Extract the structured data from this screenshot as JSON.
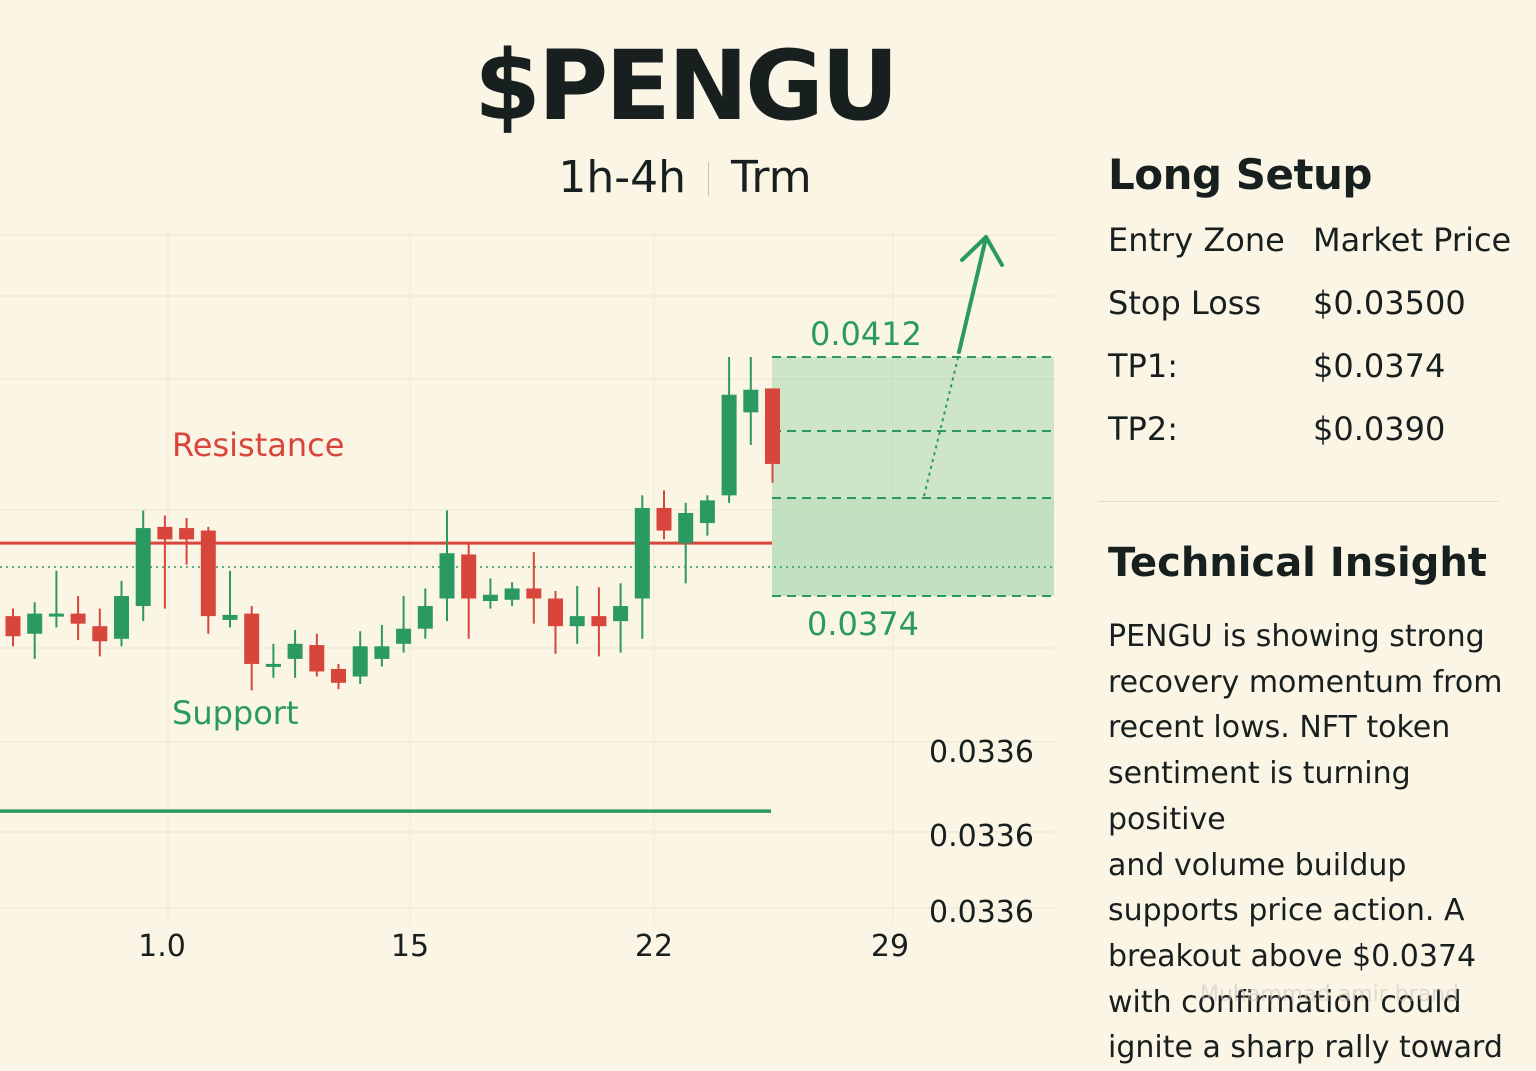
{
  "header": {
    "title": "$PENGU",
    "timeframe": "1h-4h",
    "term": "Trm"
  },
  "colors": {
    "background": "#fbf5e6",
    "bull": "#2a9a62",
    "bear": "#d8453a",
    "resistance": "#d8453a",
    "support": "#2a9a62",
    "zone": "#8fd0a0",
    "text": "#18201f"
  },
  "chart_data": {
    "type": "candlestick",
    "x_tick_labels": [
      "1.0",
      "15",
      "22",
      "29"
    ],
    "y_tick_labels": [
      "0.0336",
      "0.0336",
      "0.0336"
    ],
    "annotations": {
      "resistance_label": "Resistance",
      "support_label": "Support",
      "zone_top_label": "0.0412",
      "zone_bottom_label": "0.0374"
    },
    "levels": {
      "resistance": 0.03824,
      "support": 0.03398,
      "zone_top": 0.0412,
      "zone_bottom": 0.0374
    },
    "candles": [
      {
        "o": 0.03708,
        "h": 0.0372,
        "l": 0.0366,
        "c": 0.03676
      },
      {
        "o": 0.0368,
        "h": 0.0373,
        "l": 0.0364,
        "c": 0.03712
      },
      {
        "o": 0.03708,
        "h": 0.0378,
        "l": 0.0369,
        "c": 0.03712
      },
      {
        "o": 0.03712,
        "h": 0.0374,
        "l": 0.0367,
        "c": 0.03696
      },
      {
        "o": 0.03692,
        "h": 0.0372,
        "l": 0.03644,
        "c": 0.03668
      },
      {
        "o": 0.03672,
        "h": 0.03764,
        "l": 0.0366,
        "c": 0.0374
      },
      {
        "o": 0.03724,
        "h": 0.03876,
        "l": 0.037,
        "c": 0.03848
      },
      {
        "o": 0.0385,
        "h": 0.03868,
        "l": 0.0372,
        "c": 0.0383
      },
      {
        "o": 0.03848,
        "h": 0.03864,
        "l": 0.0379,
        "c": 0.0383
      },
      {
        "o": 0.03844,
        "h": 0.0385,
        "l": 0.0368,
        "c": 0.03708
      },
      {
        "o": 0.03702,
        "h": 0.0378,
        "l": 0.0369,
        "c": 0.0371
      },
      {
        "o": 0.03712,
        "h": 0.03724,
        "l": 0.0359,
        "c": 0.03632
      },
      {
        "o": 0.03632,
        "h": 0.03664,
        "l": 0.0361,
        "c": 0.03632
      },
      {
        "o": 0.0364,
        "h": 0.03686,
        "l": 0.0361,
        "c": 0.03664
      },
      {
        "o": 0.03662,
        "h": 0.0368,
        "l": 0.03612,
        "c": 0.0362
      },
      {
        "o": 0.03624,
        "h": 0.03632,
        "l": 0.03592,
        "c": 0.03602
      },
      {
        "o": 0.03612,
        "h": 0.03684,
        "l": 0.036,
        "c": 0.0366
      },
      {
        "o": 0.0364,
        "h": 0.03694,
        "l": 0.03628,
        "c": 0.0366
      },
      {
        "o": 0.03664,
        "h": 0.0374,
        "l": 0.0365,
        "c": 0.03688
      },
      {
        "o": 0.03688,
        "h": 0.03752,
        "l": 0.03672,
        "c": 0.03724
      },
      {
        "o": 0.03736,
        "h": 0.03876,
        "l": 0.037,
        "c": 0.03808
      },
      {
        "o": 0.03806,
        "h": 0.03826,
        "l": 0.03672,
        "c": 0.03736
      },
      {
        "o": 0.03732,
        "h": 0.03768,
        "l": 0.0372,
        "c": 0.03742
      },
      {
        "o": 0.03734,
        "h": 0.03762,
        "l": 0.03724,
        "c": 0.03752
      },
      {
        "o": 0.03752,
        "h": 0.0381,
        "l": 0.03696,
        "c": 0.03736
      },
      {
        "o": 0.03736,
        "h": 0.03748,
        "l": 0.03648,
        "c": 0.03692
      },
      {
        "o": 0.03692,
        "h": 0.03756,
        "l": 0.03664,
        "c": 0.03708
      },
      {
        "o": 0.03708,
        "h": 0.03754,
        "l": 0.03644,
        "c": 0.03692
      },
      {
        "o": 0.037,
        "h": 0.0376,
        "l": 0.0365,
        "c": 0.03724
      },
      {
        "o": 0.03736,
        "h": 0.039,
        "l": 0.03672,
        "c": 0.0388
      },
      {
        "o": 0.0388,
        "h": 0.03908,
        "l": 0.0383,
        "c": 0.03844
      },
      {
        "o": 0.03824,
        "h": 0.03888,
        "l": 0.0376,
        "c": 0.03872
      },
      {
        "o": 0.03856,
        "h": 0.039,
        "l": 0.03836,
        "c": 0.03892
      },
      {
        "o": 0.039,
        "h": 0.0412,
        "l": 0.03888,
        "c": 0.0406
      },
      {
        "o": 0.04032,
        "h": 0.0412,
        "l": 0.0398,
        "c": 0.04068
      },
      {
        "o": 0.0407,
        "h": 0.0407,
        "l": 0.0392,
        "c": 0.0395
      }
    ]
  },
  "long_setup": {
    "title": "Long Setup",
    "rows": [
      {
        "key": "Entry Zone",
        "value": "Market Price"
      },
      {
        "key": "Stop Loss",
        "value": "$0.03500"
      },
      {
        "key": "TP1:",
        "value": "$0.0374"
      },
      {
        "key": "TP2:",
        "value": "$0.0390"
      }
    ]
  },
  "insight": {
    "title": "Technical Insight",
    "lines": [
      "PENGU is showing strong",
      "recovery momentum from",
      "recent lows. NFT token",
      "sentiment is turning positive",
      "and volume buildup",
      "supports price action. A",
      "breakout above $0.0374",
      "with confirmation could",
      "ignite a sharp rally toward"
    ]
  },
  "watermark": "Muhammad amir brand"
}
